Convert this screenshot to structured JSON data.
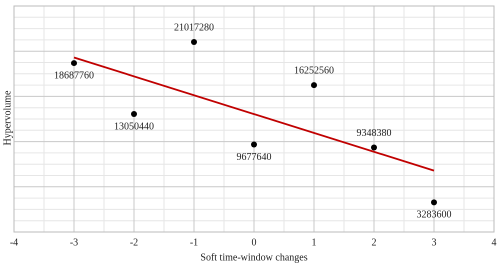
{
  "chart_data": {
    "type": "scatter",
    "x_label": "Soft time-window changes",
    "y_label": "Hypervolume",
    "x": [
      -3,
      -2,
      -1,
      0,
      1,
      2,
      3
    ],
    "values": [
      18687760,
      13050440,
      21017280,
      9677640,
      16252560,
      9348380,
      3283600
    ],
    "color": "#000000",
    "trendline_color": "#c00000",
    "xlim": [
      -4,
      4
    ],
    "xticks": [
      -4,
      -3,
      -2,
      -1,
      0,
      1,
      2,
      3,
      4
    ],
    "ylim": [
      0,
      25000000
    ],
    "grid": true
  }
}
